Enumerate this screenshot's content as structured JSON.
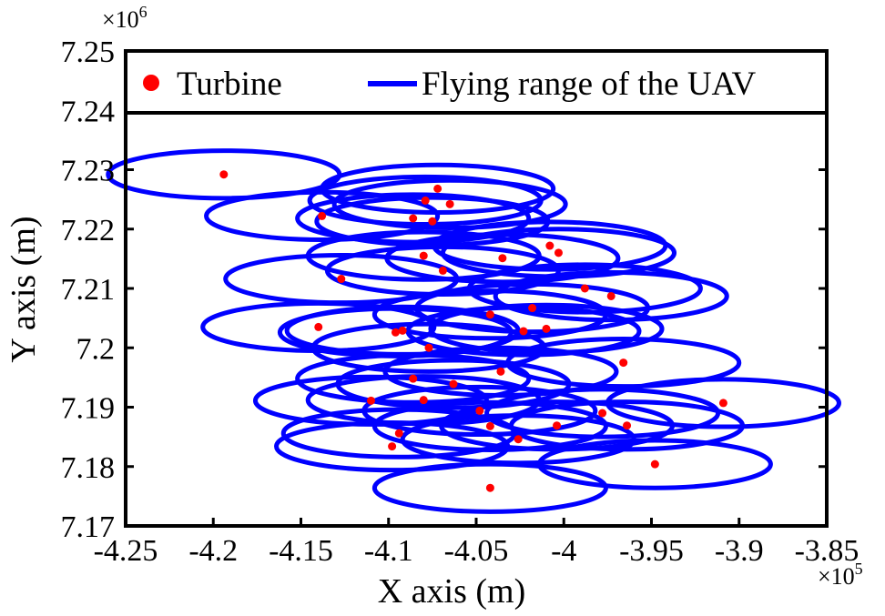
{
  "chart_data": {
    "type": "scatter",
    "title": "",
    "xlabel": "X axis (m)",
    "ylabel": "Y axis (m)",
    "xlim": [
      -425000,
      -385000
    ],
    "ylim": [
      7170000,
      7250000
    ],
    "x_ticks": [
      -425000,
      -420000,
      -415000,
      -410000,
      -405000,
      -400000,
      -395000,
      -390000,
      -385000
    ],
    "x_tick_labels": [
      "-4.25",
      "-4.2",
      "-4.15",
      "-4.1",
      "-4.05",
      "-4",
      "-3.95",
      "-3.9",
      "-3.85"
    ],
    "y_ticks": [
      7170000,
      7180000,
      7190000,
      7200000,
      7210000,
      7220000,
      7230000,
      7240000,
      7250000
    ],
    "y_tick_labels": [
      "7.17",
      "7.18",
      "7.19",
      "7.2",
      "7.21",
      "7.22",
      "7.23",
      "7.24",
      "7.25"
    ],
    "x_exponent": "×10",
    "x_exponent_power": "5",
    "y_exponent": "×10",
    "y_exponent_power": "6",
    "grid": false,
    "legend_position": "top",
    "flying_radius_x": 6600,
    "flying_radius_y": 4000,
    "series": [
      {
        "name": "Turbine",
        "color": "#ff0000",
        "marker": "dot",
        "points": [
          [
            -419400,
            7229200
          ],
          [
            -407200,
            7226800
          ],
          [
            -407900,
            7224800
          ],
          [
            -406500,
            7224200
          ],
          [
            -413800,
            7222200
          ],
          [
            -408600,
            7221800
          ],
          [
            -407500,
            7221300
          ],
          [
            -400800,
            7217200
          ],
          [
            -400300,
            7216000
          ],
          [
            -403500,
            7215100
          ],
          [
            -408000,
            7215500
          ],
          [
            -406900,
            7213000
          ],
          [
            -412700,
            7211600
          ],
          [
            -398800,
            7210000
          ],
          [
            -397300,
            7208700
          ],
          [
            -401800,
            7206700
          ],
          [
            -404200,
            7205600
          ],
          [
            -414000,
            7203500
          ],
          [
            -409200,
            7202900
          ],
          [
            -409600,
            7202600
          ],
          [
            -401000,
            7203200
          ],
          [
            -402300,
            7202800
          ],
          [
            -407700,
            7200000
          ],
          [
            -396600,
            7197500
          ],
          [
            -403600,
            7196000
          ],
          [
            -408600,
            7194800
          ],
          [
            -406300,
            7193900
          ],
          [
            -411000,
            7191100
          ],
          [
            -408000,
            7191200
          ],
          [
            -404800,
            7189400
          ],
          [
            -397800,
            7189000
          ],
          [
            -390900,
            7190700
          ],
          [
            -396400,
            7186900
          ],
          [
            -400400,
            7186900
          ],
          [
            -404200,
            7186800
          ],
          [
            -409400,
            7185600
          ],
          [
            -402600,
            7184600
          ],
          [
            -409800,
            7183400
          ],
          [
            -394800,
            7180400
          ],
          [
            -404200,
            7176400
          ]
        ]
      },
      {
        "name": "Flying range of the UAV",
        "color": "#0000ff",
        "marker": "ellipse"
      }
    ]
  }
}
